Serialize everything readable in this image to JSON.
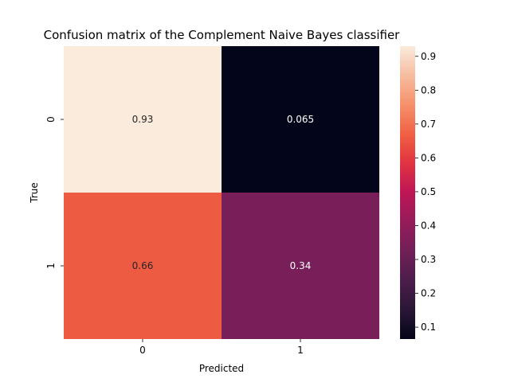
{
  "chart_data": {
    "type": "heatmap",
    "title": "Confusion matrix of the Complement Naive Bayes classifier",
    "xlabel": "Predicted",
    "ylabel": "True",
    "x_categories": [
      "0",
      "1"
    ],
    "y_categories": [
      "0",
      "1"
    ],
    "values": [
      [
        0.93,
        0.065
      ],
      [
        0.66,
        0.34
      ]
    ],
    "labels": [
      [
        "0.93",
        "0.065"
      ],
      [
        "0.66",
        "0.34"
      ]
    ],
    "colorbar": {
      "min": 0.065,
      "max": 0.93,
      "ticks": [
        0.1,
        0.2,
        0.3,
        0.4,
        0.5,
        0.6,
        0.7,
        0.8,
        0.9
      ],
      "tick_labels": [
        "0.1",
        "0.2",
        "0.3",
        "0.4",
        "0.5",
        "0.6",
        "0.7",
        "0.8",
        "0.9"
      ]
    },
    "colormap": "rocket",
    "grid": false
  }
}
